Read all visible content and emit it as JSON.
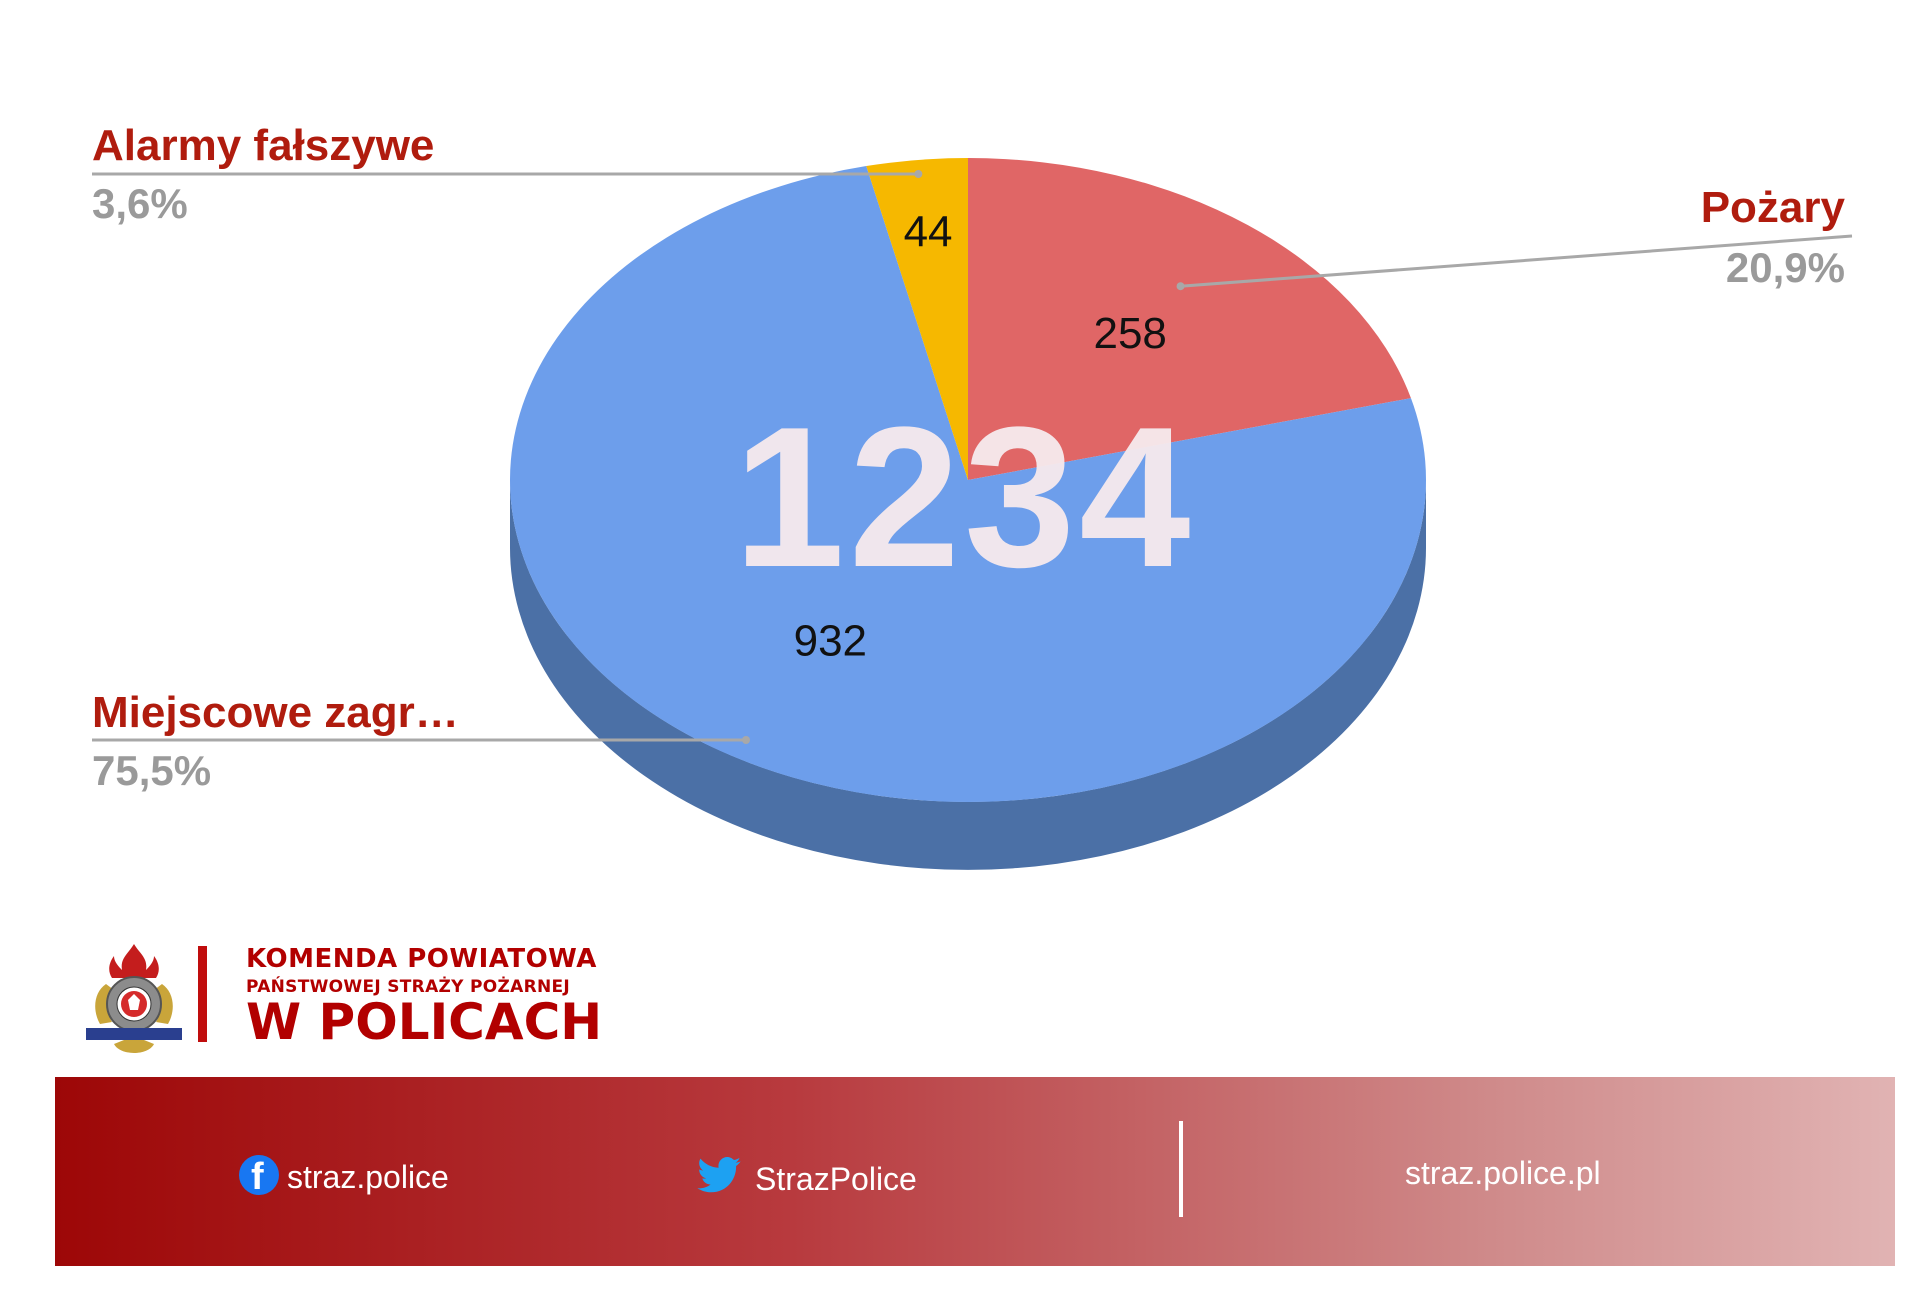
{
  "chart_data": {
    "type": "pie",
    "title": "",
    "total": "1234",
    "slices": [
      {
        "label": "Pożary",
        "value": 258,
        "percent": "20,9%",
        "color": "#e06666"
      },
      {
        "label": "Miejscowe zagr…",
        "value": 932,
        "percent": "75,5%",
        "color": "#6d9eeb"
      },
      {
        "label": "Alarmy fałszywe",
        "value": 44,
        "percent": "3,6%",
        "color": "#f6b800"
      }
    ],
    "label_color": "#b01c0e",
    "percent_color": "#9a9a9a",
    "side_color": "#4b70a6",
    "legend": "outside-labels"
  },
  "organization": {
    "line1": "KOMENDA POWIATOWA",
    "line2": "PAŃSTWOWEJ STRAŻY POŻARNEJ",
    "line3": "W POLICACH",
    "color": "#b20000"
  },
  "footer": {
    "facebook": "straz.police",
    "twitter": "StrazPolice",
    "website": "straz.police.pl"
  }
}
